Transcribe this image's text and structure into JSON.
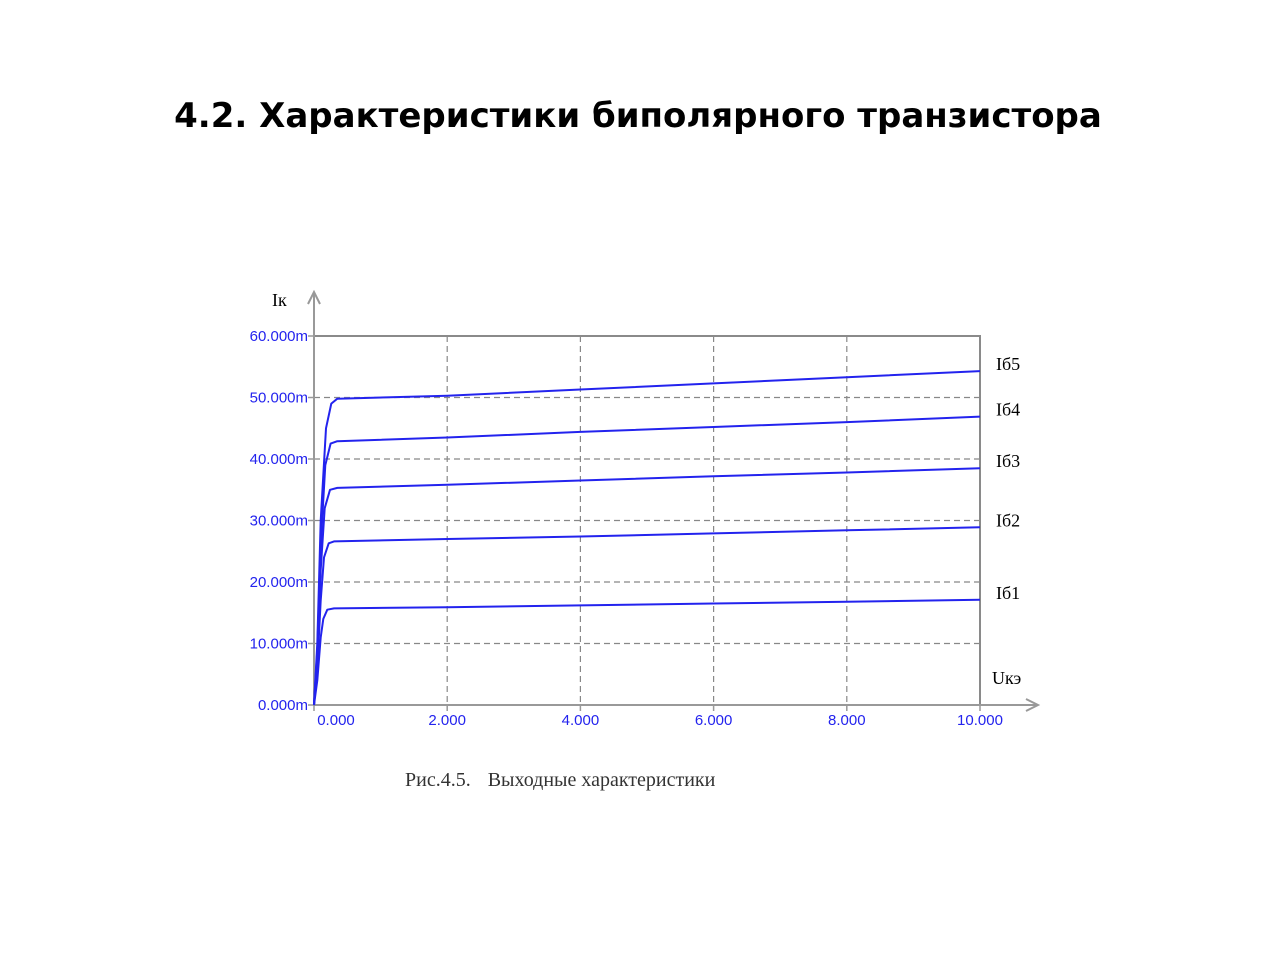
{
  "slide": {
    "title": "4.2. Характеристики биполярного транзистора"
  },
  "chart_data": {
    "type": "line",
    "caption_prefix": "Рис.4.5.",
    "caption_text": "Выходные характеристики",
    "ylabel": "Iк",
    "xlabel": "Uкэ",
    "xlim": [
      0,
      10
    ],
    "ylim": [
      0,
      60
    ],
    "x_ticks": [
      "0.000",
      "2.000",
      "4.000",
      "6.000",
      "8.000",
      "10.000"
    ],
    "y_ticks": [
      "0.000m",
      "10.000m",
      "20.000m",
      "30.000m",
      "40.000m",
      "50.000m",
      "60.000m"
    ],
    "grid": true,
    "colors": {
      "series": "#2323ee",
      "ticks": "#2323ee",
      "grid": "#888888",
      "frame": "#8a8a8a"
    },
    "series": [
      {
        "name": "Iб1",
        "points": [
          [
            0.0,
            0.0
          ],
          [
            0.05,
            4.0
          ],
          [
            0.1,
            11.0
          ],
          [
            0.14,
            14.0
          ],
          [
            0.2,
            15.5
          ],
          [
            0.3,
            15.7
          ],
          [
            2.0,
            15.9
          ],
          [
            4.0,
            16.2
          ],
          [
            6.0,
            16.5
          ],
          [
            8.0,
            16.8
          ],
          [
            10.0,
            17.1
          ]
        ]
      },
      {
        "name": "Iб2",
        "points": [
          [
            0.0,
            0.0
          ],
          [
            0.05,
            6.0
          ],
          [
            0.1,
            17.0
          ],
          [
            0.15,
            24.0
          ],
          [
            0.22,
            26.3
          ],
          [
            0.3,
            26.6
          ],
          [
            2.0,
            27.0
          ],
          [
            4.0,
            27.4
          ],
          [
            6.0,
            27.9
          ],
          [
            8.0,
            28.4
          ],
          [
            10.0,
            28.9
          ]
        ]
      },
      {
        "name": "Iб3",
        "points": [
          [
            0.0,
            0.0
          ],
          [
            0.05,
            8.0
          ],
          [
            0.1,
            22.0
          ],
          [
            0.16,
            32.0
          ],
          [
            0.24,
            35.0
          ],
          [
            0.35,
            35.3
          ],
          [
            2.0,
            35.8
          ],
          [
            4.0,
            36.5
          ],
          [
            6.0,
            37.2
          ],
          [
            8.0,
            37.8
          ],
          [
            10.0,
            38.5
          ]
        ]
      },
      {
        "name": "Iб4",
        "points": [
          [
            0.0,
            0.0
          ],
          [
            0.05,
            9.0
          ],
          [
            0.1,
            26.0
          ],
          [
            0.17,
            39.0
          ],
          [
            0.25,
            42.5
          ],
          [
            0.35,
            42.9
          ],
          [
            2.0,
            43.5
          ],
          [
            4.0,
            44.4
          ],
          [
            6.0,
            45.2
          ],
          [
            8.0,
            46.0
          ],
          [
            10.0,
            46.9
          ]
        ]
      },
      {
        "name": "Iб5",
        "points": [
          [
            0.0,
            0.0
          ],
          [
            0.05,
            10.0
          ],
          [
            0.1,
            30.0
          ],
          [
            0.18,
            45.0
          ],
          [
            0.26,
            49.0
          ],
          [
            0.35,
            49.8
          ],
          [
            2.0,
            50.3
          ],
          [
            4.0,
            51.3
          ],
          [
            6.0,
            52.3
          ],
          [
            8.0,
            53.3
          ],
          [
            10.0,
            54.3
          ]
        ]
      }
    ]
  }
}
